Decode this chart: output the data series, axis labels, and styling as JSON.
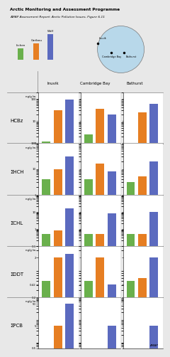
{
  "title1": "Arctic Monitoring and Assessment Programme",
  "title2": "AMAP Assessment Report: Arctic Pollution Issues, Figure 6.11",
  "locations": [
    "Inuvik",
    "Cambridge Bay",
    "Bathurst"
  ],
  "legend_labels": [
    "Lichen",
    "Caribou",
    "Wolf"
  ],
  "bar_colors": [
    "#6ab04c",
    "#e67e22",
    "#5b6abf"
  ],
  "compounds": [
    "HCBz",
    "ΣHCH",
    "ΣCHL",
    "ΣDDT",
    "ΣPCB"
  ],
  "ylabel": "ng/g lw",
  "data": {
    "HCBz": {
      "Inuvik": [
        1.2,
        30,
        90
      ],
      "Cambridge Bay": [
        2.5,
        35,
        20
      ],
      "Bathurst": [
        1.0,
        25,
        60
      ]
    },
    "ΣHCH": {
      "Inuvik": [
        4,
        10,
        30
      ],
      "Cambridge Bay": [
        4,
        16,
        8
      ],
      "Bathurst": [
        3,
        5,
        20
      ]
    },
    "ΣCHL": {
      "Inuvik": [
        0.5,
        0.8,
        16
      ],
      "Cambridge Bay": [
        0.5,
        0.5,
        8
      ],
      "Bathurst": [
        0.5,
        0.5,
        10
      ]
    },
    "ΣDDT": {
      "Inuvik": [
        0.5,
        2.0,
        2.5
      ],
      "Cambridge Bay": [
        0.5,
        2.0,
        0.42
      ],
      "Bathurst": [
        0.5,
        0.6,
        2.0
      ]
    },
    "ΣPCB": {
      "Inuvik": [
        0.5,
        5,
        50
      ],
      "Cambridge Bay": [
        0.5,
        0.5,
        5
      ],
      "Bathurst": [
        0.5,
        0.5,
        5
      ]
    }
  },
  "ylims": {
    "HCBz": [
      1,
      200
    ],
    "ΣHCH": [
      1,
      100
    ],
    "ΣCHL": [
      0.1,
      100
    ],
    "ΣDDT": [
      0.2,
      4
    ],
    "ΣPCB": [
      0.5,
      100
    ]
  },
  "yticks": {
    "HCBz": [
      1,
      10,
      100
    ],
    "ΣHCH": [
      1,
      10,
      100
    ],
    "ΣCHL": [
      0.1,
      1,
      10
    ],
    "ΣDDT": [
      0.2,
      0.42,
      2
    ],
    "ΣPCB": [
      0.5,
      5,
      50
    ]
  },
  "ytick_labels": {
    "HCBz": [
      "1",
      "10",
      "100"
    ],
    "ΣHCH": [
      "1",
      "10",
      "100"
    ],
    "ΣCHL": [
      "0.1",
      "1",
      "10"
    ],
    "ΣDDT": [
      "0.2",
      "0.42",
      "2"
    ],
    "ΣPCB": [
      "0.5",
      "5",
      "50"
    ]
  },
  "background_color": "#e8e8e8",
  "panel_bg": "#ffffff"
}
